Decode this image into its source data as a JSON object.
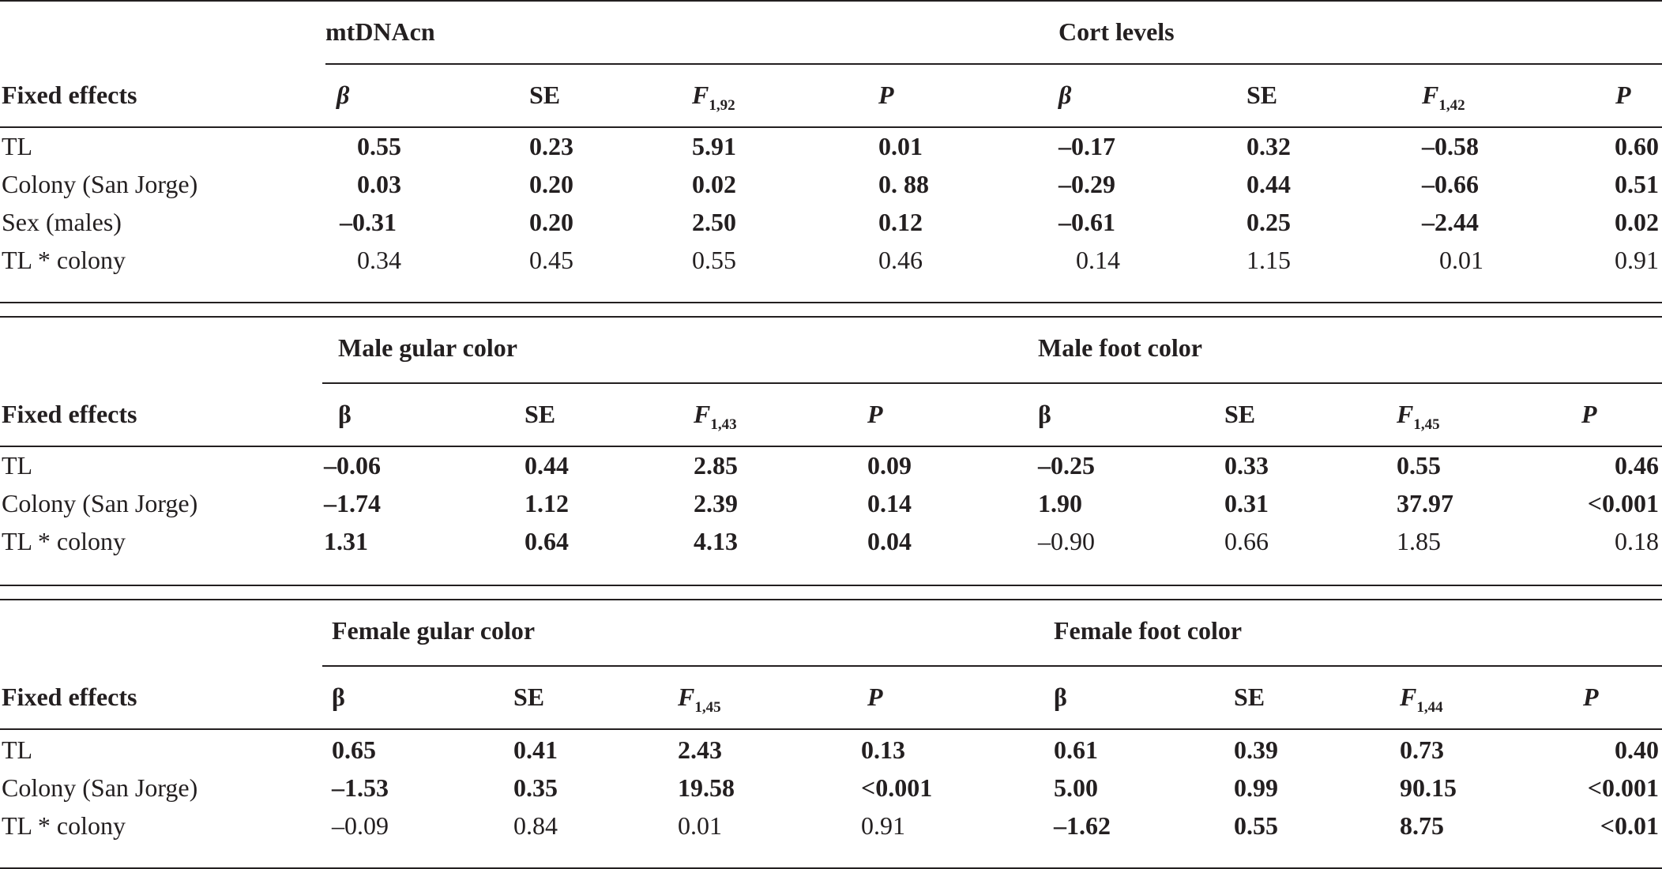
{
  "sections": [
    {
      "row_header": "Fixed effects",
      "groups": [
        "mtDNAcn",
        "Cort levels"
      ],
      "columns": [
        {
          "label": "β"
        },
        {
          "label": "SE"
        },
        {
          "label": "F",
          "sub": "1,92"
        },
        {
          "label": "P"
        },
        {
          "label": "β"
        },
        {
          "label": "SE"
        },
        {
          "label": "F",
          "sub": "1,42"
        },
        {
          "label": "P"
        }
      ],
      "rows": [
        {
          "label": "TL",
          "cells": [
            {
              "v": "0.55",
              "b": true
            },
            {
              "v": "0.23",
              "b": true
            },
            {
              "v": "5.91",
              "b": true
            },
            {
              "v": "0.01",
              "b": true
            },
            {
              "v": "–0.17",
              "b": true
            },
            {
              "v": "0.32",
              "b": true
            },
            {
              "v": "–0.58",
              "b": true
            },
            {
              "v": "0.60",
              "b": true
            }
          ]
        },
        {
          "label": "Colony (San Jorge)",
          "cells": [
            {
              "v": "0.03",
              "b": true
            },
            {
              "v": "0.20",
              "b": true
            },
            {
              "v": "0.02",
              "b": true
            },
            {
              "v": "0. 88",
              "b": true
            },
            {
              "v": "–0.29",
              "b": true
            },
            {
              "v": "0.44",
              "b": true
            },
            {
              "v": "–0.66",
              "b": true
            },
            {
              "v": "0.51",
              "b": true
            }
          ]
        },
        {
          "label": "Sex (males)",
          "cells": [
            {
              "v": "–0.31",
              "b": true
            },
            {
              "v": "0.20",
              "b": true
            },
            {
              "v": "2.50",
              "b": true
            },
            {
              "v": "0.12",
              "b": true
            },
            {
              "v": "–0.61",
              "b": true
            },
            {
              "v": "0.25",
              "b": true
            },
            {
              "v": "–2.44",
              "b": true
            },
            {
              "v": "0.02",
              "b": true
            }
          ]
        },
        {
          "label": "TL * colony",
          "cells": [
            {
              "v": "0.34",
              "b": false
            },
            {
              "v": "0.45",
              "b": false
            },
            {
              "v": "0.55",
              "b": false
            },
            {
              "v": "0.46",
              "b": false
            },
            {
              "v": "0.14",
              "b": false
            },
            {
              "v": "1.15",
              "b": false
            },
            {
              "v": "0.01",
              "b": false
            },
            {
              "v": "0.91",
              "b": false
            }
          ]
        }
      ]
    },
    {
      "row_header": "Fixed effects",
      "groups": [
        "Male gular color",
        "Male foot color"
      ],
      "columns": [
        {
          "label": "β"
        },
        {
          "label": "SE"
        },
        {
          "label": "F",
          "sub": "1,43"
        },
        {
          "label": "P"
        },
        {
          "label": "β"
        },
        {
          "label": "SE"
        },
        {
          "label": "F",
          "sub": "1,45"
        },
        {
          "label": "P"
        }
      ],
      "rows": [
        {
          "label": "TL",
          "cells": [
            {
              "v": "–0.06",
              "b": true
            },
            {
              "v": "0.44",
              "b": true
            },
            {
              "v": "2.85",
              "b": true
            },
            {
              "v": "0.09",
              "b": true
            },
            {
              "v": "–0.25",
              "b": true
            },
            {
              "v": "0.33",
              "b": true
            },
            {
              "v": "0.55",
              "b": true
            },
            {
              "v": "0.46",
              "b": true
            }
          ]
        },
        {
          "label": "Colony (San Jorge)",
          "cells": [
            {
              "v": "–1.74",
              "b": true
            },
            {
              "v": "1.12",
              "b": true
            },
            {
              "v": "2.39",
              "b": true
            },
            {
              "v": "0.14",
              "b": true
            },
            {
              "v": "1.90",
              "b": true
            },
            {
              "v": "0.31",
              "b": true
            },
            {
              "v": "37.97",
              "b": true
            },
            {
              "v": "<0.001",
              "b": true
            }
          ]
        },
        {
          "label": "TL * colony",
          "cells": [
            {
              "v": "1.31",
              "b": true
            },
            {
              "v": "0.64",
              "b": true
            },
            {
              "v": "4.13",
              "b": true
            },
            {
              "v": "0.04",
              "b": true
            },
            {
              "v": "–0.90",
              "b": false
            },
            {
              "v": "0.66",
              "b": false
            },
            {
              "v": "1.85",
              "b": false
            },
            {
              "v": "0.18",
              "b": false
            }
          ]
        }
      ]
    },
    {
      "row_header": "Fixed effects",
      "groups": [
        "Female gular color",
        "Female foot color"
      ],
      "columns": [
        {
          "label": "β"
        },
        {
          "label": "SE"
        },
        {
          "label": "F",
          "sub": "1,45"
        },
        {
          "label": "P"
        },
        {
          "label": "β"
        },
        {
          "label": "SE"
        },
        {
          "label": "F",
          "sub": "1,44"
        },
        {
          "label": "P"
        }
      ],
      "rows": [
        {
          "label": "TL",
          "cells": [
            {
              "v": "0.65",
              "b": true
            },
            {
              "v": "0.41",
              "b": true
            },
            {
              "v": "2.43",
              "b": true
            },
            {
              "v": "0.13",
              "b": true
            },
            {
              "v": "0.61",
              "b": true
            },
            {
              "v": "0.39",
              "b": true
            },
            {
              "v": "0.73",
              "b": true
            },
            {
              "v": "0.40",
              "b": true
            }
          ]
        },
        {
          "label": "Colony (San Jorge)",
          "cells": [
            {
              "v": "–1.53",
              "b": true
            },
            {
              "v": "0.35",
              "b": true
            },
            {
              "v": "19.58",
              "b": true
            },
            {
              "v": "<0.001",
              "b": true
            },
            {
              "v": "5.00",
              "b": true
            },
            {
              "v": "0.99",
              "b": true
            },
            {
              "v": "90.15",
              "b": true
            },
            {
              "v": "<0.001",
              "b": true
            }
          ]
        },
        {
          "label": "TL * colony",
          "cells": [
            {
              "v": "–0.09",
              "b": false
            },
            {
              "v": "0.84",
              "b": false
            },
            {
              "v": "0.01",
              "b": false
            },
            {
              "v": "0.91",
              "b": false
            },
            {
              "v": "–1.62",
              "b": true
            },
            {
              "v": "0.55",
              "b": true
            },
            {
              "v": "8.75",
              "b": true
            },
            {
              "v": "<0.01",
              "b": true
            }
          ]
        }
      ]
    }
  ]
}
